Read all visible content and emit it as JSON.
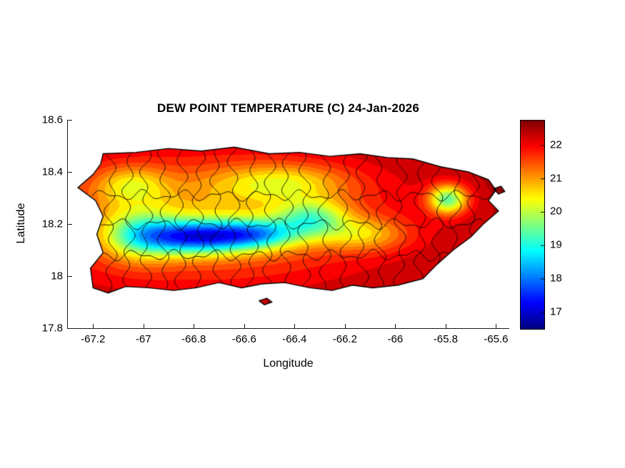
{
  "chart_data": {
    "type": "heatmap",
    "title": "DEW POINT TEMPERATURE (C) 24-Jan-2026",
    "xlabel": "Longitude",
    "ylabel": "Latitude",
    "region": "Puerto Rico",
    "xlim": [
      -67.3,
      -65.55
    ],
    "ylim": [
      17.8,
      18.6
    ],
    "xticks": {
      "values": [
        -67.2,
        -67,
        -66.8,
        -66.6,
        -66.4,
        -66.2,
        -66,
        -65.8,
        -65.6
      ],
      "labels": [
        "-67.2",
        "-67",
        "-66.8",
        "-66.6",
        "-66.4",
        "-66.2",
        "-66",
        "-65.8",
        "-65.6"
      ]
    },
    "yticks": {
      "values": [
        17.8,
        18,
        18.2,
        18.4,
        18.6
      ],
      "labels": [
        "17.8",
        "18",
        "18.2",
        "18.4",
        "18.6"
      ]
    },
    "colorbar": {
      "colormap": "jet",
      "clim": [
        16.5,
        22.75
      ],
      "ticks": [
        17,
        18,
        19,
        20,
        21,
        22
      ]
    },
    "value_range_displayed": [
      16.9,
      22.5
    ],
    "quantize_step": 0.25,
    "field": {
      "units": "C",
      "base": 22.5,
      "gaussians": [
        {
          "lon": -66.8,
          "lat": 18.15,
          "sx": 0.15,
          "sy": 0.045,
          "amp": 3.6
        },
        {
          "lon": -66.55,
          "lat": 18.16,
          "sx": 0.12,
          "sy": 0.04,
          "amp": 2.4
        },
        {
          "lon": -67.02,
          "lat": 18.16,
          "sx": 0.1,
          "sy": 0.07,
          "amp": 1.6
        },
        {
          "lon": -66.75,
          "lat": 18.22,
          "sx": 0.5,
          "sy": 0.17,
          "amp": 1.6
        },
        {
          "lon": -65.79,
          "lat": 18.295,
          "sx": 0.055,
          "sy": 0.04,
          "amp": 2.8
        },
        {
          "lon": -66.12,
          "lat": 18.16,
          "sx": 0.12,
          "sy": 0.045,
          "amp": 1.2
        },
        {
          "lon": -66.33,
          "lat": 18.22,
          "sx": 0.1,
          "sy": 0.05,
          "amp": 2.0
        },
        {
          "lon": -66.45,
          "lat": 18.36,
          "sx": 0.18,
          "sy": 0.05,
          "amp": 1.3
        },
        {
          "lon": -67.05,
          "lat": 18.35,
          "sx": 0.1,
          "sy": 0.05,
          "amp": 1.2
        }
      ]
    },
    "coastline": [
      [
        -67.16,
        18.47
      ],
      [
        -67.03,
        18.475
      ],
      [
        -66.9,
        18.49
      ],
      [
        -66.77,
        18.48
      ],
      [
        -66.64,
        18.495
      ],
      [
        -66.5,
        18.47
      ],
      [
        -66.38,
        18.475
      ],
      [
        -66.26,
        18.46
      ],
      [
        -66.14,
        18.47
      ],
      [
        -66.03,
        18.455
      ],
      [
        -65.93,
        18.45
      ],
      [
        -65.82,
        18.42
      ],
      [
        -65.71,
        18.4
      ],
      [
        -65.63,
        18.37
      ],
      [
        -65.6,
        18.33
      ],
      [
        -65.63,
        18.29
      ],
      [
        -65.59,
        18.25
      ],
      [
        -65.65,
        18.2
      ],
      [
        -65.7,
        18.15
      ],
      [
        -65.77,
        18.1
      ],
      [
        -65.84,
        18.04
      ],
      [
        -65.89,
        17.99
      ],
      [
        -65.99,
        17.965
      ],
      [
        -66.09,
        17.955
      ],
      [
        -66.17,
        17.965
      ],
      [
        -66.25,
        17.945
      ],
      [
        -66.34,
        17.955
      ],
      [
        -66.44,
        17.975
      ],
      [
        -66.53,
        17.97
      ],
      [
        -66.61,
        17.955
      ],
      [
        -66.7,
        17.975
      ],
      [
        -66.79,
        17.955
      ],
      [
        -66.88,
        17.945
      ],
      [
        -66.98,
        17.955
      ],
      [
        -67.07,
        17.96
      ],
      [
        -67.14,
        17.935
      ],
      [
        -67.2,
        17.955
      ],
      [
        -67.21,
        18.03
      ],
      [
        -67.16,
        18.09
      ],
      [
        -67.185,
        18.16
      ],
      [
        -67.16,
        18.23
      ],
      [
        -67.19,
        18.29
      ],
      [
        -67.26,
        18.34
      ],
      [
        -67.2,
        18.39
      ],
      [
        -67.17,
        18.43
      ]
    ],
    "islets": [
      [
        [
          -66.54,
          17.905
        ],
        [
          -66.51,
          17.915
        ],
        [
          -66.49,
          17.9
        ],
        [
          -66.52,
          17.89
        ]
      ],
      [
        [
          -65.61,
          18.335
        ],
        [
          -65.58,
          18.345
        ],
        [
          -65.565,
          18.325
        ],
        [
          -65.59,
          18.315
        ]
      ]
    ],
    "boundaries": {
      "vertical_lons": [
        -67.13,
        -67.06,
        -66.99,
        -66.92,
        -66.85,
        -66.78,
        -66.71,
        -66.64,
        -66.57,
        -66.5,
        -66.43,
        -66.36,
        -66.28,
        -66.2,
        -66.13,
        -66.06,
        -65.98,
        -65.9,
        -65.83,
        -65.76,
        -65.69
      ],
      "horizontal_lats": [
        18.08,
        18.2,
        18.31
      ]
    },
    "colors": {
      "boundary_line": "#000000",
      "coastline": "#000000",
      "axis": "#1a1a1a"
    }
  }
}
